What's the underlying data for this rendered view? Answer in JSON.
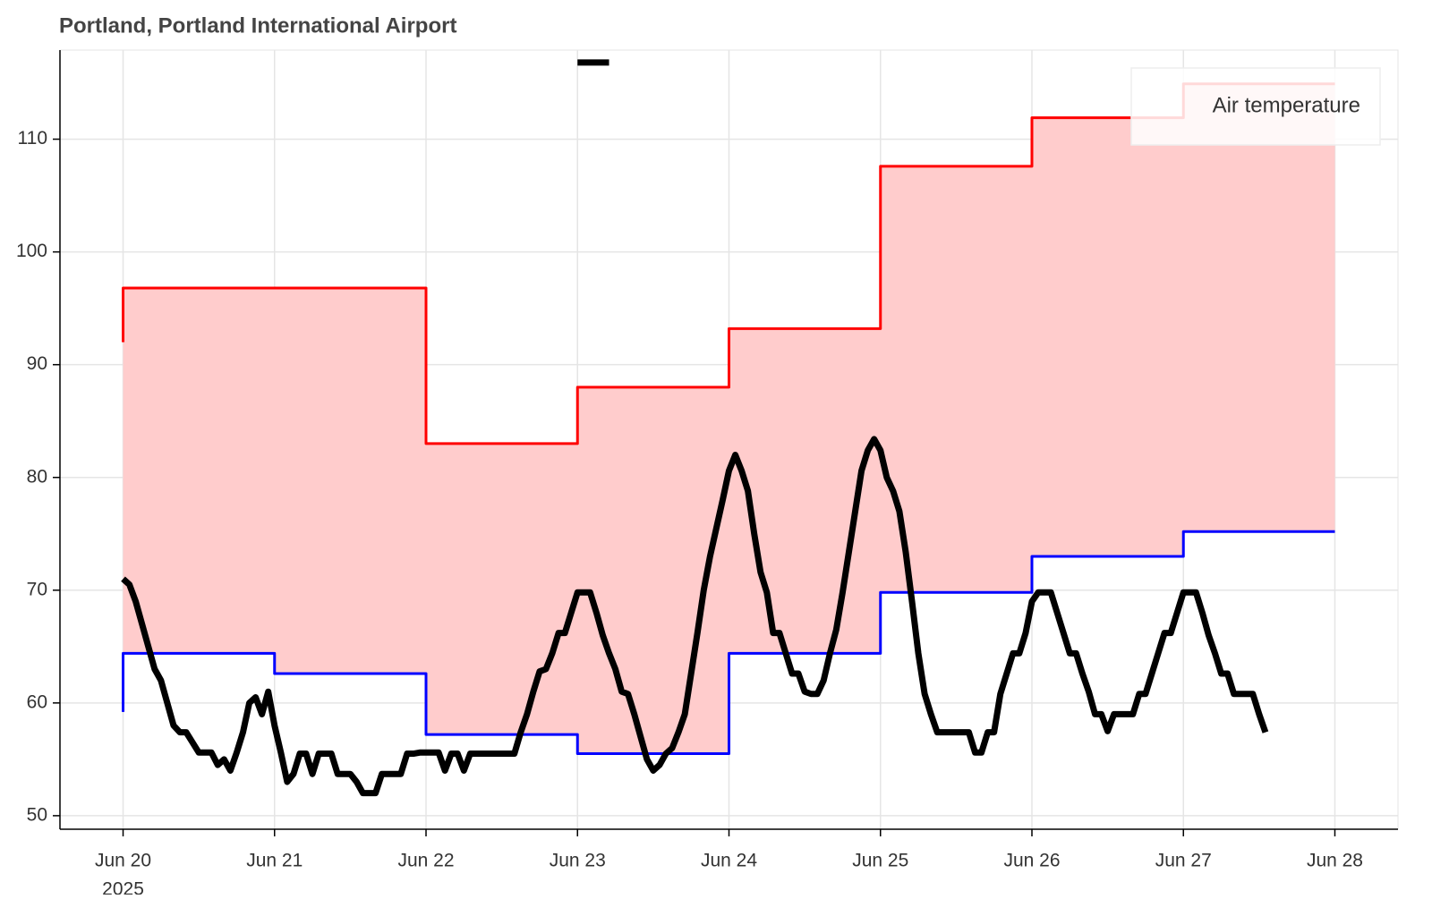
{
  "chart_data": {
    "type": "line",
    "title": "Portland, Portland International Airport",
    "x_axis_year": "2025",
    "xlim": [
      "2025-06-19T14:00",
      "2025-06-28T10:00"
    ],
    "xticks": [
      {
        "value": "2025-06-20T00:00",
        "label": "Jun 20"
      },
      {
        "value": "2025-06-21T00:00",
        "label": "Jun 21"
      },
      {
        "value": "2025-06-22T00:00",
        "label": "Jun 22"
      },
      {
        "value": "2025-06-23T00:00",
        "label": "Jun 23"
      },
      {
        "value": "2025-06-24T00:00",
        "label": "Jun 24"
      },
      {
        "value": "2025-06-25T00:00",
        "label": "Jun 25"
      },
      {
        "value": "2025-06-26T00:00",
        "label": "Jun 26"
      },
      {
        "value": "2025-06-27T00:00",
        "label": "Jun 27"
      },
      {
        "value": "2025-06-28T00:00",
        "label": "Jun 28"
      }
    ],
    "ylim": [
      48.8,
      117.9
    ],
    "yticks": [
      50,
      60,
      70,
      80,
      90,
      100,
      110
    ],
    "grid": true,
    "legend": "top-right",
    "band_fill": "#ffcccc",
    "series": [
      {
        "color": "#ff0000",
        "step": "before",
        "x": [
          "2025-06-20T00:00",
          "2025-06-21T00:00",
          "2025-06-22T00:00",
          "2025-06-23T00:00",
          "2025-06-24T00:00",
          "2025-06-25T00:00",
          "2025-06-26T00:00",
          "2025-06-27T00:00",
          "2025-06-28T00:00"
        ],
        "values": [
          92,
          96.8,
          96.8,
          83,
          88,
          93.2,
          107.6,
          111.9,
          114.9
        ]
      },
      {
        "color": "#0000ff",
        "step": "before",
        "x": [
          "2025-06-20T00:00",
          "2025-06-21T00:00",
          "2025-06-22T00:00",
          "2025-06-23T00:00",
          "2025-06-24T00:00",
          "2025-06-25T00:00",
          "2025-06-26T00:00",
          "2025-06-27T00:00",
          "2025-06-28T00:00"
        ],
        "values": [
          59.2,
          64.4,
          62.6,
          57.2,
          55.5,
          64.4,
          69.8,
          73,
          75.2
        ]
      },
      {
        "color": "#000000",
        "x": [
          "2025-06-23T00:00",
          "2025-06-23T05:00"
        ],
        "values": [
          116.8,
          116.8
        ]
      },
      {
        "name": "Air temperature",
        "color": "#000000",
        "x": [
          "2025-06-20T00:00",
          "2025-06-20T01:00",
          "2025-06-20T02:00",
          "2025-06-20T03:00",
          "2025-06-20T04:00",
          "2025-06-20T05:00",
          "2025-06-20T06:00",
          "2025-06-20T07:00",
          "2025-06-20T08:00",
          "2025-06-20T09:00",
          "2025-06-20T10:00",
          "2025-06-20T11:00",
          "2025-06-20T12:00",
          "2025-06-20T13:00",
          "2025-06-20T14:00",
          "2025-06-20T15:00",
          "2025-06-20T16:00",
          "2025-06-20T17:00",
          "2025-06-20T18:00",
          "2025-06-20T19:00",
          "2025-06-20T20:00",
          "2025-06-20T21:00",
          "2025-06-20T22:00",
          "2025-06-20T23:00",
          "2025-06-21T00:00",
          "2025-06-21T01:00",
          "2025-06-21T02:00",
          "2025-06-21T03:00",
          "2025-06-21T04:00",
          "2025-06-21T05:00",
          "2025-06-21T06:00",
          "2025-06-21T07:00",
          "2025-06-21T08:00",
          "2025-06-21T09:00",
          "2025-06-21T10:00",
          "2025-06-21T11:00",
          "2025-06-21T12:00",
          "2025-06-21T13:00",
          "2025-06-21T14:00",
          "2025-06-21T15:00",
          "2025-06-21T16:00",
          "2025-06-21T17:00",
          "2025-06-21T18:00",
          "2025-06-21T19:00",
          "2025-06-21T20:00",
          "2025-06-21T21:00",
          "2025-06-21T22:00",
          "2025-06-21T23:00",
          "2025-06-22T00:00",
          "2025-06-22T01:00",
          "2025-06-22T02:00",
          "2025-06-22T03:00",
          "2025-06-22T04:00",
          "2025-06-22T05:00",
          "2025-06-22T06:00",
          "2025-06-22T07:00",
          "2025-06-22T08:00",
          "2025-06-22T09:00",
          "2025-06-22T10:00",
          "2025-06-22T11:00",
          "2025-06-22T12:00",
          "2025-06-22T13:00",
          "2025-06-22T14:00",
          "2025-06-22T15:00",
          "2025-06-22T16:00",
          "2025-06-22T17:00",
          "2025-06-22T18:00",
          "2025-06-22T19:00",
          "2025-06-22T20:00",
          "2025-06-22T21:00",
          "2025-06-22T22:00",
          "2025-06-22T23:00",
          "2025-06-23T00:00",
          "2025-06-23T01:00",
          "2025-06-23T02:00",
          "2025-06-23T03:00",
          "2025-06-23T04:00",
          "2025-06-23T05:00",
          "2025-06-23T06:00",
          "2025-06-23T07:00",
          "2025-06-23T08:00",
          "2025-06-23T09:00",
          "2025-06-23T10:00",
          "2025-06-23T11:00",
          "2025-06-23T12:00",
          "2025-06-23T13:00",
          "2025-06-23T14:00",
          "2025-06-23T15:00",
          "2025-06-23T16:00",
          "2025-06-23T17:00",
          "2025-06-23T18:00",
          "2025-06-23T19:00",
          "2025-06-23T20:00",
          "2025-06-23T21:00",
          "2025-06-23T22:00",
          "2025-06-23T23:00",
          "2025-06-24T00:00",
          "2025-06-24T01:00",
          "2025-06-24T02:00",
          "2025-06-24T03:00",
          "2025-06-24T04:00",
          "2025-06-24T05:00",
          "2025-06-24T06:00",
          "2025-06-24T07:00",
          "2025-06-24T08:00",
          "2025-06-24T09:00",
          "2025-06-24T10:00",
          "2025-06-24T11:00",
          "2025-06-24T12:00",
          "2025-06-24T13:00",
          "2025-06-24T14:00",
          "2025-06-24T15:00",
          "2025-06-24T16:00",
          "2025-06-24T17:00",
          "2025-06-24T18:00",
          "2025-06-24T19:00",
          "2025-06-24T20:00",
          "2025-06-24T21:00",
          "2025-06-24T22:00",
          "2025-06-24T23:00",
          "2025-06-25T00:00",
          "2025-06-25T01:00",
          "2025-06-25T02:00",
          "2025-06-25T03:00",
          "2025-06-25T04:00",
          "2025-06-25T05:00",
          "2025-06-25T06:00",
          "2025-06-25T07:00",
          "2025-06-25T08:00",
          "2025-06-25T09:00",
          "2025-06-25T10:00",
          "2025-06-25T11:00",
          "2025-06-25T12:00",
          "2025-06-25T13:00",
          "2025-06-25T14:00",
          "2025-06-25T15:00",
          "2025-06-25T16:00",
          "2025-06-25T17:00",
          "2025-06-25T18:00",
          "2025-06-25T19:00",
          "2025-06-25T20:00",
          "2025-06-25T21:00",
          "2025-06-25T22:00",
          "2025-06-25T23:00",
          "2025-06-26T00:00",
          "2025-06-26T01:00",
          "2025-06-26T02:00",
          "2025-06-26T03:00",
          "2025-06-26T04:00",
          "2025-06-26T05:00",
          "2025-06-26T06:00",
          "2025-06-26T07:00",
          "2025-06-26T08:00",
          "2025-06-26T09:00",
          "2025-06-26T10:00",
          "2025-06-26T11:00",
          "2025-06-26T12:00",
          "2025-06-26T13:00",
          "2025-06-26T14:00",
          "2025-06-26T15:00",
          "2025-06-26T16:00",
          "2025-06-26T17:00",
          "2025-06-26T18:00",
          "2025-06-26T19:00",
          "2025-06-26T20:00",
          "2025-06-26T21:00",
          "2025-06-26T22:00",
          "2025-06-26T23:00",
          "2025-06-27T00:00",
          "2025-06-27T01:00",
          "2025-06-27T02:00",
          "2025-06-27T03:00",
          "2025-06-27T04:00",
          "2025-06-27T05:00",
          "2025-06-27T06:00",
          "2025-06-27T07:00",
          "2025-06-27T08:00",
          "2025-06-27T09:00",
          "2025-06-27T10:00",
          "2025-06-27T11:00",
          "2025-06-27T12:00",
          "2025-06-27T13:00"
        ],
        "values": [
          71,
          70.5,
          69,
          67,
          65,
          63,
          62,
          60,
          58,
          57.4,
          57.4,
          56.5,
          55.6,
          55.6,
          55.6,
          54.5,
          55,
          54,
          55.6,
          57.4,
          60,
          60.5,
          59,
          61,
          58,
          55.6,
          53,
          53.7,
          55.5,
          55.5,
          53.7,
          55.5,
          55.5,
          55.5,
          53.7,
          53.7,
          53.7,
          53,
          52,
          52,
          52,
          53.7,
          53.7,
          53.7,
          53.7,
          55.5,
          55.5,
          55.6,
          55.6,
          55.6,
          55.6,
          54,
          55.5,
          55.5,
          54,
          55.5,
          55.5,
          55.5,
          55.5,
          55.5,
          55.5,
          55.5,
          55.5,
          57.4,
          59,
          61,
          62.8,
          63,
          64.4,
          66.2,
          66.2,
          68,
          69.8,
          69.8,
          69.8,
          68,
          66,
          64.4,
          63,
          61,
          60.8,
          59,
          57,
          55,
          54,
          54.5,
          55.5,
          56,
          57.4,
          59,
          62.6,
          66.2,
          70,
          73,
          75.5,
          78,
          80.6,
          82,
          80.6,
          78.8,
          75,
          71.6,
          69.8,
          66.2,
          66.2,
          64.4,
          62.6,
          62.6,
          61,
          60.8,
          60.8,
          62,
          64.4,
          66.5,
          69.8,
          73.4,
          77,
          80.6,
          82.4,
          83.4,
          82.4,
          80,
          78.8,
          77,
          73.4,
          69,
          64.4,
          60.8,
          59,
          57.4,
          57.4,
          57.4,
          57.4,
          57.4,
          57.4,
          55.6,
          55.6,
          57.4,
          57.4,
          60.8,
          62.6,
          64.4,
          64.4,
          66.2,
          69,
          69.8,
          69.8,
          69.8,
          68,
          66.2,
          64.4,
          64.4,
          62.6,
          61,
          59,
          59,
          57.5,
          59,
          59,
          59,
          59,
          60.8,
          60.8,
          62.6,
          64.4,
          66.2,
          66.2,
          68,
          69.8,
          69.8,
          69.8,
          68,
          66,
          64.4,
          62.6,
          62.6,
          60.8,
          60.8,
          60.8,
          60.8,
          59,
          57.4
        ]
      }
    ]
  }
}
